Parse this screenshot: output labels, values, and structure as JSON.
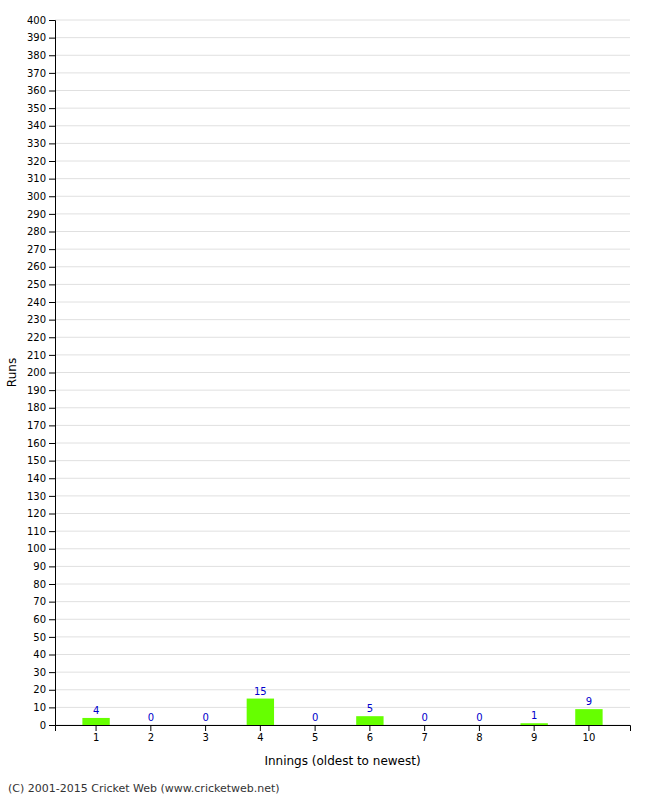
{
  "chart_data": {
    "type": "bar",
    "xlabel": "Innings (oldest to newest)",
    "ylabel": "Runs",
    "categories": [
      1,
      2,
      3,
      4,
      5,
      6,
      7,
      8,
      9,
      10
    ],
    "values": [
      4,
      0,
      0,
      15,
      0,
      5,
      0,
      0,
      1,
      9
    ],
    "color": "#66ff00",
    "ylim": [
      0,
      400
    ],
    "yticks": [
      0,
      10,
      20,
      30,
      40,
      50,
      60,
      70,
      80,
      90,
      100,
      110,
      120,
      130,
      140,
      150,
      160,
      170,
      180,
      190,
      200,
      210,
      220,
      230,
      240,
      250,
      260,
      270,
      280,
      290,
      300,
      310,
      320,
      330,
      340,
      350,
      360,
      370,
      380,
      390,
      400
    ],
    "grid": true,
    "data_labels": true,
    "annotations": [
      "(C) 2001-2015 Cricket Web (www.cricketweb.net)"
    ]
  }
}
